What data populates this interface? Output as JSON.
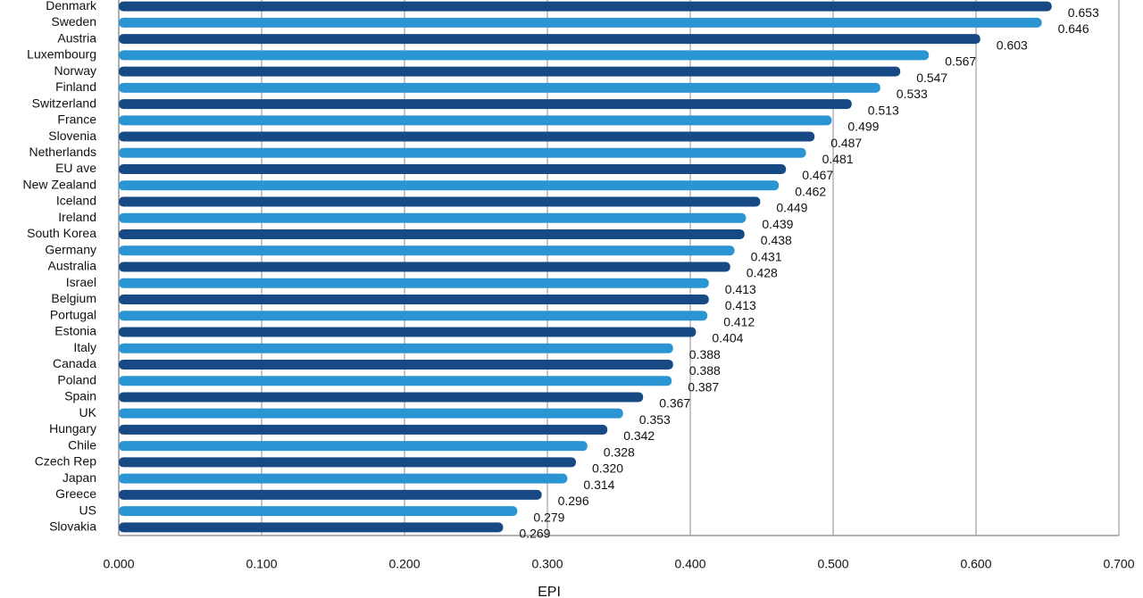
{
  "chart_data": {
    "type": "hbar",
    "x_label": "EPI",
    "categories": [
      "Denmark",
      "Sweden",
      "Austria",
      "Luxembourg",
      "Norway",
      "Finland",
      "Switzerland",
      "France",
      "Slovenia",
      "Netherlands",
      "EU ave",
      "New Zealand",
      "Iceland",
      "Ireland",
      "South Korea",
      "Germany",
      "Australia",
      "Israel",
      "Belgium",
      "Portugal",
      "Estonia",
      "Italy",
      "Canada",
      "Poland",
      "Spain",
      "UK",
      "Hungary",
      "Chile",
      "Czech Rep",
      "Japan",
      "Greece",
      "US",
      "Slovakia"
    ],
    "values": [
      0.653,
      0.646,
      0.603,
      0.567,
      0.547,
      0.533,
      0.513,
      0.499,
      0.487,
      0.481,
      0.467,
      0.462,
      0.449,
      0.439,
      0.438,
      0.431,
      0.428,
      0.413,
      0.413,
      0.412,
      0.404,
      0.388,
      0.388,
      0.387,
      0.367,
      0.353,
      0.342,
      0.328,
      0.32,
      0.314,
      0.296,
      0.279,
      0.269
    ],
    "value_labels": [
      "0.653",
      "0.646",
      "0.603",
      "0.567",
      "0.547",
      "0.533",
      "0.513",
      "0.499",
      "0.487",
      "0.481",
      "0.467",
      "0.462",
      "0.449",
      "0.439",
      "0.438",
      "0.431",
      "0.428",
      "0.413",
      "0.413",
      "0.412",
      "0.404",
      "0.388",
      "0.388",
      "0.387",
      "0.367",
      "0.353",
      "0.342",
      "0.328",
      "0.320",
      "0.314",
      "0.296",
      "0.279",
      "0.269"
    ],
    "colors": [
      "#174a85",
      "#2b95d3"
    ],
    "xlim": [
      0,
      0.7
    ],
    "xticks": [
      {
        "value": 0,
        "label": "0.000"
      },
      {
        "value": 0.1,
        "label": "0.100"
      },
      {
        "value": 0.2,
        "label": "0.200"
      },
      {
        "value": 0.3,
        "label": "0.300"
      },
      {
        "value": 0.4,
        "label": "0.400"
      },
      {
        "value": 0.5,
        "label": "0.500"
      },
      {
        "value": 0.6,
        "label": "0.600"
      },
      {
        "value": 0.7,
        "label": "0.700"
      }
    ],
    "grid": true
  }
}
